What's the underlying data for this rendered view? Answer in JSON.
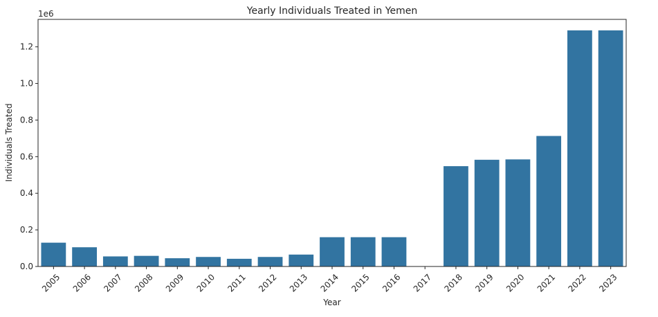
{
  "chart_data": {
    "type": "bar",
    "title": "Yearly Individuals Treated in Yemen",
    "xlabel": "Year",
    "ylabel": "Individuals Treated",
    "offset_label": "1e6",
    "categories": [
      "2005",
      "2006",
      "2007",
      "2008",
      "2009",
      "2010",
      "2011",
      "2012",
      "2013",
      "2014",
      "2015",
      "2016",
      "2017",
      "2018",
      "2019",
      "2020",
      "2021",
      "2022",
      "2023"
    ],
    "values": [
      130000,
      105000,
      55000,
      58000,
      45000,
      52000,
      42000,
      52000,
      65000,
      160000,
      160000,
      160000,
      0,
      548000,
      583000,
      585000,
      713000,
      1290000,
      1290000
    ],
    "ylim": [
      0,
      1350000
    ],
    "yticks": [
      0,
      200000,
      400000,
      600000,
      800000,
      1000000,
      1200000
    ],
    "ytick_labels": [
      "0.0",
      "0.2",
      "0.4",
      "0.6",
      "0.8",
      "1.0",
      "1.2"
    ],
    "grid": false,
    "colors": {
      "bar": "#3274a1",
      "axis": "#262626"
    }
  }
}
